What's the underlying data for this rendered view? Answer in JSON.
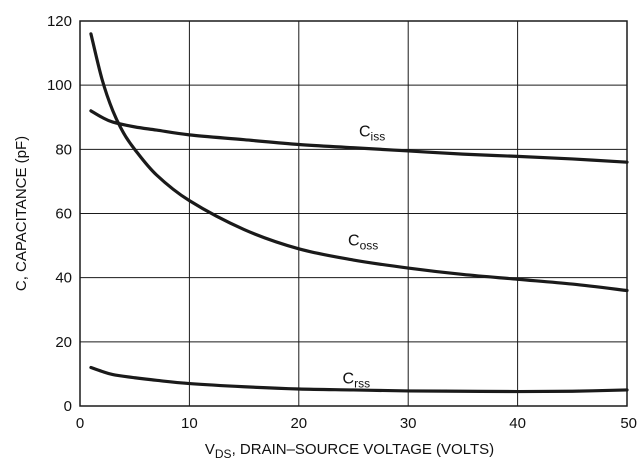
{
  "chart_data": {
    "type": "line",
    "title": "",
    "xlabel": {
      "main": "V",
      "sub": "DS",
      "rest": ", DRAIN–SOURCE VOLTAGE (VOLTS)"
    },
    "ylabel": "C, CAPACITANCE (pF)",
    "xlim": [
      0,
      50
    ],
    "ylim": [
      0,
      120
    ],
    "xticks": [
      0,
      10,
      20,
      30,
      40,
      50
    ],
    "yticks": [
      0,
      20,
      40,
      60,
      80,
      100,
      120
    ],
    "grid": true,
    "series": [
      {
        "name": "Ciss",
        "label": {
          "main": "C",
          "sub": "iss"
        },
        "x": [
          1,
          2,
          3,
          5,
          7,
          10,
          15,
          20,
          25,
          30,
          35,
          40,
          45,
          50
        ],
        "y": [
          92,
          90,
          88.5,
          87,
          86,
          84.5,
          83,
          81.5,
          80.5,
          79.5,
          78.5,
          77.8,
          77,
          76
        ]
      },
      {
        "name": "Coss",
        "label": {
          "main": "C",
          "sub": "oss"
        },
        "x": [
          1,
          2,
          3,
          4,
          5,
          7,
          10,
          15,
          20,
          25,
          30,
          35,
          40,
          45,
          50
        ],
        "y": [
          116,
          102,
          92,
          85,
          80,
          72,
          64,
          55,
          49,
          45.5,
          43,
          41,
          39.5,
          38,
          36
        ]
      },
      {
        "name": "Crss",
        "label": {
          "main": "C",
          "sub": "rss"
        },
        "x": [
          1,
          2,
          3,
          5,
          7,
          10,
          15,
          20,
          25,
          30,
          35,
          40,
          45,
          50
        ],
        "y": [
          12,
          10.8,
          9.8,
          8.8,
          8,
          7,
          6,
          5.3,
          5,
          4.7,
          4.6,
          4.5,
          4.6,
          5
        ]
      }
    ]
  }
}
